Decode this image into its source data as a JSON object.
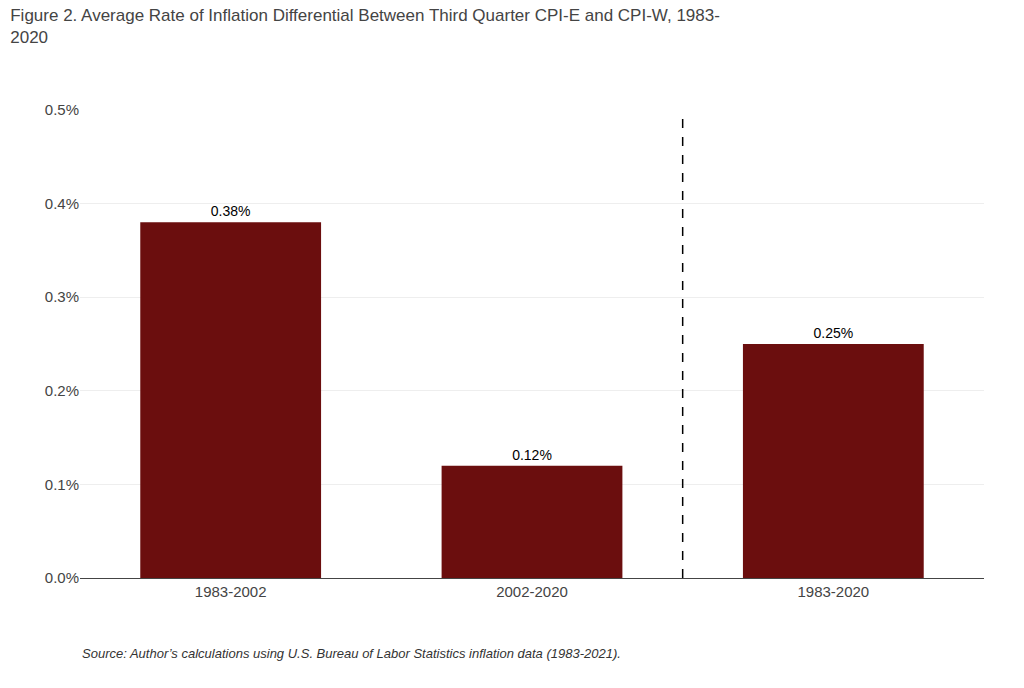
{
  "chart_data": {
    "type": "bar",
    "title": "Figure 2. Average Rate of Inflation Differential Between Third Quarter CPI-E and CPI-W, 1983-\n2020",
    "categories": [
      "1983-2002",
      "2002-2020",
      "1983-2020"
    ],
    "values": [
      0.0038,
      0.0012,
      0.0025
    ],
    "value_labels": [
      "0.38%",
      "0.12%",
      "0.25%"
    ],
    "data_labels": true,
    "color": "#6B0E0E",
    "ylim": [
      0,
      0.005
    ],
    "yticks": [
      {
        "value": 0.0,
        "label": "0.0%"
      },
      {
        "value": 0.001,
        "label": "0.1%"
      },
      {
        "value": 0.002,
        "label": "0.2%"
      },
      {
        "value": 0.003,
        "label": "0.3%"
      },
      {
        "value": 0.004,
        "label": "0.4%"
      },
      {
        "value": 0.005,
        "label": "0.5%"
      }
    ],
    "grid": true,
    "annotations": [
      "Source: Author’s calculations using U.S. Bureau of Labor Statistics inflation data (1983-2021)."
    ]
  }
}
